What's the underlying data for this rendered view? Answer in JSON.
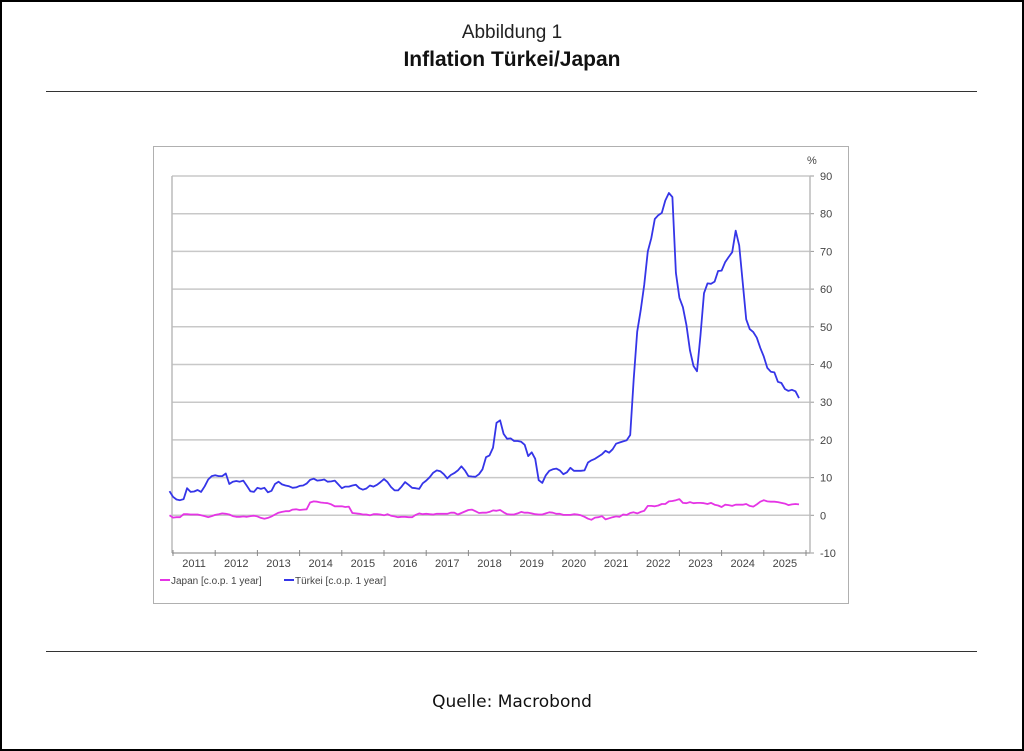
{
  "header": {
    "figure_label": "Abbildung 1",
    "title": "Inflation Türkei/Japan"
  },
  "footer": {
    "source": "Quelle: Macrobond"
  },
  "chart_data": {
    "type": "line",
    "title": "Inflation Türkei/Japan",
    "ylabel": "%",
    "ylim": [
      -10,
      90
    ],
    "yticks": [
      90,
      80,
      70,
      60,
      50,
      40,
      30,
      20,
      10,
      0,
      -10
    ],
    "y_axis_side": "right",
    "xlim": [
      2011.0,
      2026.1
    ],
    "xtick_labels": [
      "2011",
      "2012",
      "2013",
      "2014",
      "2015",
      "2016",
      "2017",
      "2018",
      "2019",
      "2020",
      "2021",
      "2022",
      "2023",
      "2024",
      "2025"
    ],
    "grid": "horizontal",
    "legend_position": "bottom-left",
    "x_start": "2010-12",
    "x_step": "month",
    "series": [
      {
        "name": "Japan [c.o.p. 1 year]",
        "color": "#e535e5",
        "values": [
          0.0,
          -0.6,
          -0.5,
          -0.5,
          0.3,
          0.3,
          0.2,
          0.2,
          0.2,
          0.0,
          -0.2,
          -0.5,
          -0.2,
          0.1,
          0.3,
          0.5,
          0.4,
          0.2,
          -0.2,
          -0.4,
          -0.4,
          -0.3,
          -0.4,
          -0.2,
          -0.1,
          -0.3,
          -0.7,
          -0.9,
          -0.7,
          -0.3,
          0.2,
          0.7,
          0.9,
          1.1,
          1.1,
          1.5,
          1.6,
          1.4,
          1.5,
          1.6,
          3.4,
          3.7,
          3.6,
          3.4,
          3.3,
          3.2,
          2.9,
          2.4,
          2.4,
          2.4,
          2.2,
          2.3,
          0.6,
          0.5,
          0.4,
          0.2,
          0.2,
          0.0,
          0.3,
          0.3,
          0.2,
          0.0,
          0.3,
          -0.1,
          -0.3,
          -0.5,
          -0.4,
          -0.4,
          -0.5,
          -0.5,
          0.1,
          0.5,
          0.3,
          0.4,
          0.3,
          0.2,
          0.4,
          0.4,
          0.4,
          0.4,
          0.7,
          0.7,
          0.2,
          0.6,
          1.0,
          1.4,
          1.5,
          1.1,
          0.6,
          0.7,
          0.7,
          0.9,
          1.3,
          1.2,
          1.4,
          0.8,
          0.3,
          0.2,
          0.2,
          0.5,
          0.9,
          0.7,
          0.7,
          0.5,
          0.3,
          0.2,
          0.2,
          0.5,
          0.8,
          0.7,
          0.4,
          0.4,
          0.1,
          0.1,
          0.1,
          0.3,
          0.2,
          0.0,
          -0.4,
          -0.9,
          -1.2,
          -0.6,
          -0.5,
          -0.2,
          -1.1,
          -0.8,
          -0.5,
          -0.3,
          -0.4,
          0.2,
          0.1,
          0.6,
          0.8,
          0.5,
          0.9,
          1.2,
          2.5,
          2.5,
          2.4,
          2.6,
          3.0,
          3.0,
          3.7,
          3.8,
          4.0,
          4.3,
          3.3,
          3.2,
          3.5,
          3.2,
          3.3,
          3.3,
          3.2,
          3.0,
          3.3,
          2.8,
          2.6,
          2.2,
          2.8,
          2.7,
          2.5,
          2.8,
          2.8,
          2.8,
          3.0,
          2.5,
          2.3,
          2.9,
          3.6,
          4.0,
          3.7,
          3.6,
          3.6,
          3.5,
          3.3,
          3.1,
          2.7,
          2.9,
          3.0,
          2.9
        ]
      },
      {
        "name": "Türkei [c.o.p. 1 year]",
        "color": "#3535e8",
        "values": [
          6.4,
          4.9,
          4.2,
          4.0,
          4.3,
          7.2,
          6.2,
          6.3,
          6.7,
          6.2,
          7.7,
          9.5,
          10.4,
          10.6,
          10.4,
          10.4,
          11.1,
          8.3,
          8.9,
          9.1,
          8.9,
          9.2,
          7.8,
          6.4,
          6.2,
          7.3,
          7.0,
          7.3,
          6.1,
          6.5,
          8.3,
          8.9,
          8.2,
          7.9,
          7.7,
          7.3,
          7.4,
          7.8,
          7.9,
          8.4,
          9.4,
          9.7,
          9.2,
          9.3,
          9.5,
          8.9,
          9.0,
          9.2,
          8.2,
          7.2,
          7.6,
          7.6,
          7.9,
          8.1,
          7.2,
          6.8,
          7.1,
          7.9,
          7.6,
          8.1,
          8.8,
          9.6,
          8.8,
          7.5,
          6.6,
          6.6,
          7.6,
          8.8,
          8.1,
          7.3,
          7.2,
          7.0,
          8.5,
          9.2,
          10.1,
          11.3,
          11.9,
          11.7,
          10.9,
          9.8,
          10.7,
          11.2,
          11.9,
          13.0,
          11.9,
          10.4,
          10.3,
          10.2,
          10.9,
          12.2,
          15.4,
          15.9,
          17.9,
          24.5,
          25.2,
          21.6,
          20.3,
          20.4,
          19.7,
          19.7,
          19.5,
          18.7,
          15.7,
          16.7,
          15.0,
          9.3,
          8.6,
          10.6,
          11.8,
          12.2,
          12.4,
          11.9,
          10.9,
          11.4,
          12.6,
          11.8,
          11.8,
          11.8,
          11.9,
          14.0,
          14.6,
          15.0,
          15.6,
          16.2,
          17.1,
          16.6,
          17.5,
          19.0,
          19.3,
          19.6,
          19.9,
          21.3,
          36.1,
          48.7,
          54.4,
          61.1,
          70.0,
          73.5,
          78.6,
          79.6,
          80.2,
          83.5,
          85.5,
          84.4,
          64.3,
          57.7,
          55.2,
          50.5,
          43.7,
          39.6,
          38.2,
          47.8,
          58.9,
          61.5,
          61.4,
          62.0,
          64.8,
          64.9,
          67.1,
          68.5,
          69.8,
          75.5,
          71.6,
          61.8,
          52.0,
          49.4,
          48.6,
          47.1,
          44.4,
          42.1,
          39.1,
          38.1,
          37.9,
          35.4,
          35.1,
          33.5,
          33.0,
          33.3,
          32.9,
          31.1
        ]
      }
    ]
  }
}
